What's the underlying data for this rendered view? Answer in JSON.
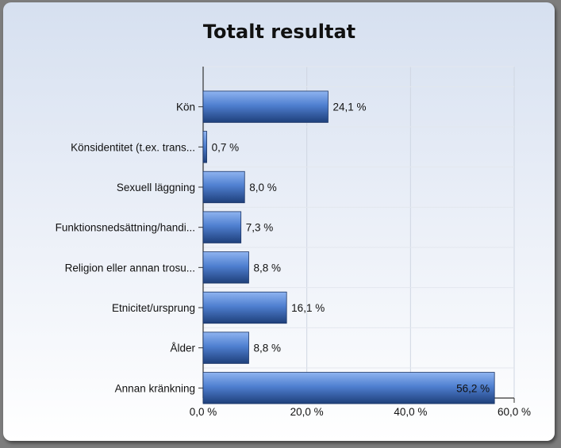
{
  "chart_data": {
    "type": "bar",
    "orientation": "horizontal",
    "title": "Totalt resultat",
    "categories": [
      "Kön",
      "Könsidentitet (t.ex. trans...",
      "Sexuell läggning",
      "Funktionsnedsättning/handi...",
      "Religion eller annan trosu...",
      "Etnicitet/ursprung",
      "Ålder",
      "Annan kränkning"
    ],
    "values": [
      24.1,
      0.7,
      8.0,
      7.3,
      8.8,
      16.1,
      8.8,
      56.2
    ],
    "value_labels": [
      "24,1 %",
      "0,7 %",
      "8,0 %",
      "7,3 %",
      "8,8 %",
      "16,1 %",
      "8,8 %",
      "56,2 %"
    ],
    "xlim": [
      0,
      60
    ],
    "xticks": [
      0,
      20,
      40,
      60
    ],
    "xtick_labels": [
      "0,0 %",
      "20,0 %",
      "40,0 %",
      "60,0 %"
    ],
    "grid": true,
    "bar_color": "#4f7fd0",
    "bar_color_dark": "#1e3f7a"
  }
}
